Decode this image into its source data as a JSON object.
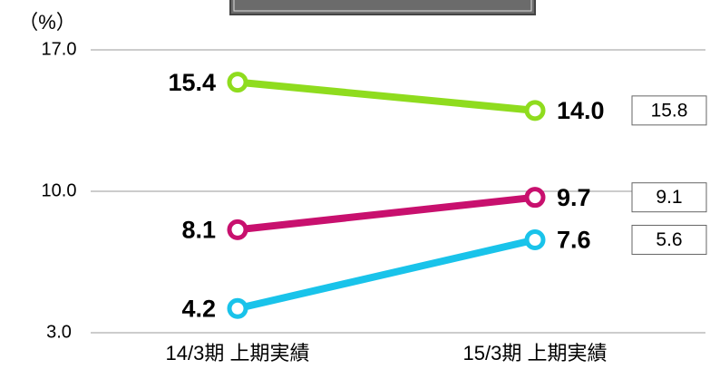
{
  "chart_data": {
    "type": "line",
    "y_unit_label": "（%）",
    "categories": [
      "14/3期 上期実績",
      "15/3期 上期実績"
    ],
    "series": [
      {
        "color": "#8fdc1e",
        "values": [
          15.4,
          14.0
        ],
        "boxed_value": 15.8
      },
      {
        "color": "#c8106e",
        "values": [
          8.1,
          9.7
        ],
        "boxed_value": 9.1
      },
      {
        "color": "#19c3ea",
        "values": [
          4.2,
          7.6
        ],
        "boxed_value": 5.6
      }
    ],
    "ylim": [
      3,
      17
    ],
    "yticks": [
      3,
      10,
      17
    ],
    "grid": true
  }
}
